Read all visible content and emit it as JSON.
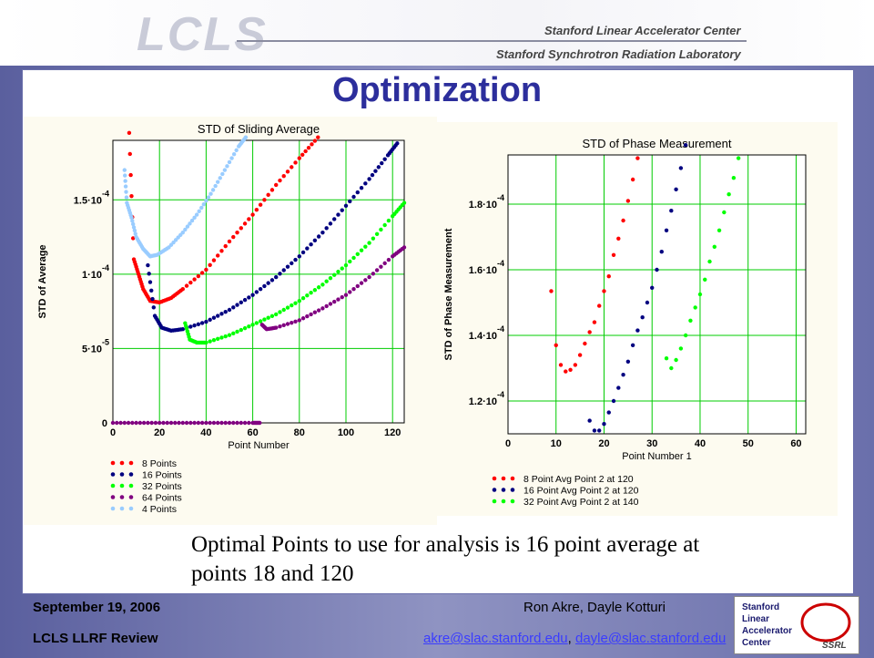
{
  "header": {
    "logo_text": "LCLS",
    "lab_line_1": "Stanford Linear Accelerator Center",
    "lab_line_2": "Stanford Synchrotron Radiation Laboratory"
  },
  "slide": {
    "title": "Optimization",
    "caption": "Optimal Points to use for analysis is 16 point average at points 18 and 120"
  },
  "footer": {
    "date": "September 19, 2006",
    "review": "LCLS LLRF Review",
    "authors": "Ron Akre, Dayle Kotturi",
    "email_1": "akre@slac.stanford.edu",
    "separator": ", ",
    "email_2": "dayle@slac.stanford.edu",
    "logo_lines": [
      "Stanford",
      "Linear",
      "Accelerator",
      "Center"
    ],
    "logo_badge": "SSRL"
  },
  "chart_data": [
    {
      "type": "scatter",
      "title": "STD of Sliding Average",
      "xlabel": "Point Number",
      "ylabel": "STD of Average",
      "xlim": [
        0,
        125
      ],
      "ylim": [
        0,
        0.00019
      ],
      "x_ticks": [
        0,
        20,
        40,
        60,
        80,
        100,
        120
      ],
      "y_ticks": [
        {
          "value": 0,
          "label": "0"
        },
        {
          "value": 5e-05,
          "label": "5·10",
          "exp": "-5"
        },
        {
          "value": 0.0001,
          "label": "1·10",
          "exp": "-4"
        },
        {
          "value": 0.00015,
          "label": "1.5·10",
          "exp": "-4"
        }
      ],
      "grid": true,
      "legend_position": "bottom-left",
      "series": [
        {
          "name": "8 Points",
          "color": "#ff0000",
          "points": [
            [
              7,
              0.000195
            ],
            [
              9,
              0.00011
            ],
            [
              11,
              0.0001
            ],
            [
              13,
              9e-05
            ],
            [
              16,
              8.2e-05
            ],
            [
              20,
              8.1e-05
            ],
            [
              25,
              8.4e-05
            ],
            [
              30,
              9e-05
            ],
            [
              40,
              0.000103
            ],
            [
              50,
              0.000122
            ],
            [
              60,
              0.00014
            ],
            [
              70,
              0.00016
            ],
            [
              80,
              0.000178
            ],
            [
              88,
              0.000192
            ]
          ]
        },
        {
          "name": "16 Points",
          "color": "#000080",
          "points": [
            [
              15,
              0.000106
            ],
            [
              18,
              7.2e-05
            ],
            [
              21,
              6.4e-05
            ],
            [
              25,
              6.2e-05
            ],
            [
              30,
              6.3e-05
            ],
            [
              40,
              6.8e-05
            ],
            [
              50,
              7.6e-05
            ],
            [
              60,
              8.6e-05
            ],
            [
              70,
              9.8e-05
            ],
            [
              80,
              0.000112
            ],
            [
              90,
              0.000128
            ],
            [
              100,
              0.000146
            ],
            [
              110,
              0.000164
            ],
            [
              118,
              0.00018
            ],
            [
              122,
              0.000188
            ]
          ]
        },
        {
          "name": "32 Points",
          "color": "#00ff00",
          "points": [
            [
              31,
              6.7e-05
            ],
            [
              33,
              5.6e-05
            ],
            [
              36,
              5.4e-05
            ],
            [
              40,
              5.4e-05
            ],
            [
              50,
              5.9e-05
            ],
            [
              60,
              6.6e-05
            ],
            [
              70,
              7.3e-05
            ],
            [
              80,
              8.2e-05
            ],
            [
              90,
              9.3e-05
            ],
            [
              100,
              0.000106
            ],
            [
              110,
              0.000121
            ],
            [
              120,
              0.000139
            ],
            [
              125,
              0.000148
            ]
          ]
        },
        {
          "name": "64 Points",
          "color": "#800080",
          "points": [
            [
              64,
              6.6e-05
            ],
            [
              66,
              6.3e-05
            ],
            [
              70,
              6.4e-05
            ],
            [
              80,
              6.9e-05
            ],
            [
              90,
              7.7e-05
            ],
            [
              100,
              8.6e-05
            ],
            [
              110,
              9.8e-05
            ],
            [
              120,
              0.000112
            ],
            [
              125,
              0.000118
            ]
          ]
        },
        {
          "name": "4 Points",
          "color": "#99ccff",
          "points": [
            [
              5,
              0.00017
            ],
            [
              6,
              0.000148
            ],
            [
              8,
              0.000138
            ],
            [
              10,
              0.000125
            ],
            [
              13,
              0.000117
            ],
            [
              16,
              0.000112
            ],
            [
              19,
              0.000113
            ],
            [
              24,
              0.000118
            ],
            [
              30,
              0.000128
            ],
            [
              36,
              0.00014
            ],
            [
              42,
              0.000154
            ],
            [
              48,
              0.00017
            ],
            [
              54,
              0.000186
            ],
            [
              57,
              0.000192
            ]
          ]
        },
        {
          "name": "64 Points baseline",
          "color": "#800080",
          "points": [
            [
              0,
              0
            ],
            [
              10,
              0
            ],
            [
              20,
              0
            ],
            [
              30,
              0
            ],
            [
              40,
              0
            ],
            [
              50,
              0
            ],
            [
              60,
              0
            ],
            [
              63,
              0
            ]
          ]
        }
      ]
    },
    {
      "type": "scatter",
      "title": "STD of Phase Measurement",
      "xlabel": "Point Number 1",
      "ylabel": "STD of Phase Measurement",
      "xlim": [
        0,
        62
      ],
      "ylim": [
        0.00011,
        0.000195
      ],
      "x_ticks": [
        0,
        10,
        20,
        30,
        40,
        50,
        60
      ],
      "y_ticks": [
        {
          "value": 0.00012,
          "label": "1.2·10",
          "exp": "-4"
        },
        {
          "value": 0.00014,
          "label": "1.4·10",
          "exp": "-4"
        },
        {
          "value": 0.00016,
          "label": "1.6·10",
          "exp": "-4"
        },
        {
          "value": 0.00018,
          "label": "1.8·10",
          "exp": "-4"
        }
      ],
      "grid": true,
      "legend_position": "bottom-left",
      "series": [
        {
          "name": "8 Point Avg Point 2 at 120",
          "color": "#ff0000",
          "points": [
            [
              9,
              0.0001535
            ],
            [
              10,
              0.000137
            ],
            [
              11,
              0.000131
            ],
            [
              12,
              0.000129
            ],
            [
              13,
              0.0001295
            ],
            [
              14,
              0.000131
            ],
            [
              15,
              0.000134
            ],
            [
              16,
              0.0001375
            ],
            [
              17,
              0.000141
            ],
            [
              18,
              0.000144
            ],
            [
              19,
              0.000149
            ],
            [
              20,
              0.0001535
            ],
            [
              21,
              0.000158
            ],
            [
              22,
              0.0001645
            ],
            [
              23,
              0.0001695
            ],
            [
              24,
              0.000175
            ],
            [
              25,
              0.000181
            ],
            [
              26,
              0.0001875
            ],
            [
              27,
              0.000194
            ]
          ]
        },
        {
          "name": "16 Point Avg Point 2 at 120",
          "color": "#000080",
          "points": [
            [
              17,
              0.000114
            ],
            [
              18,
              0.000111
            ],
            [
              19,
              0.000111
            ],
            [
              20,
              0.000113
            ],
            [
              21,
              0.0001165
            ],
            [
              22,
              0.00012
            ],
            [
              23,
              0.000124
            ],
            [
              24,
              0.000128
            ],
            [
              25,
              0.000132
            ],
            [
              26,
              0.000137
            ],
            [
              27,
              0.0001415
            ],
            [
              28,
              0.0001455
            ],
            [
              29,
              0.00015
            ],
            [
              30,
              0.0001545
            ],
            [
              31,
              0.00016
            ],
            [
              32,
              0.0001655
            ],
            [
              33,
              0.000172
            ],
            [
              34,
              0.000178
            ],
            [
              35,
              0.0001845
            ],
            [
              36,
              0.000191
            ],
            [
              37,
              0.000198
            ]
          ]
        },
        {
          "name": "32 Point Avg Point 2 at 140",
          "color": "#00ff00",
          "points": [
            [
              33,
              0.000133
            ],
            [
              34,
              0.00013
            ],
            [
              35,
              0.0001325
            ],
            [
              36,
              0.000136
            ],
            [
              37,
              0.00014
            ],
            [
              38,
              0.0001445
            ],
            [
              39,
              0.0001485
            ],
            [
              40,
              0.0001525
            ],
            [
              41,
              0.000157
            ],
            [
              42,
              0.0001625
            ],
            [
              43,
              0.000167
            ],
            [
              44,
              0.000172
            ],
            [
              45,
              0.0001775
            ],
            [
              46,
              0.000183
            ],
            [
              47,
              0.000188
            ],
            [
              48,
              0.000194
            ]
          ]
        }
      ]
    }
  ]
}
